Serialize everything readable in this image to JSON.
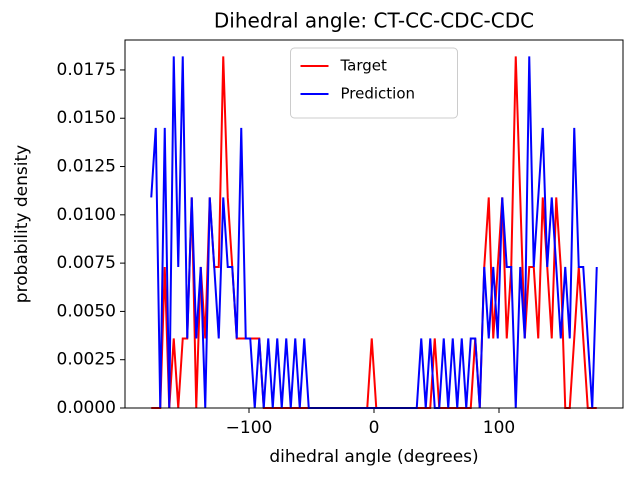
{
  "chart_data": {
    "type": "line",
    "title": "Dihedral angle: CT-CC-CDC-CDC",
    "xlabel": "dihedral angle (degrees)",
    "ylabel": "probability density",
    "x": [
      -178.2,
      -174.6,
      -171,
      -167.4,
      -163.8,
      -160.2,
      -156.6,
      -153,
      -149.4,
      -145.8,
      -142.2,
      -138.6,
      -135,
      -131.4,
      -127.8,
      -124.2,
      -120.6,
      -117,
      -113.4,
      -109.8,
      -106.2,
      -102.6,
      -99,
      -95.4,
      -91.8,
      -88.2,
      -84.6,
      -81,
      -77.4,
      -73.8,
      -70.2,
      -66.6,
      -63,
      -59.4,
      -55.8,
      -52.2,
      -48.6,
      -45,
      -41.4,
      -37.8,
      -34.2,
      -30.6,
      -27,
      -23.4,
      -19.8,
      -16.2,
      -12.6,
      -9,
      -5.4,
      -1.8,
      1.8,
      5.4,
      9,
      12.6,
      16.2,
      19.8,
      23.4,
      27,
      30.6,
      34.2,
      37.8,
      41.4,
      45,
      48.6,
      52.2,
      55.8,
      59.4,
      63,
      66.6,
      70.2,
      73.8,
      77.4,
      81,
      84.6,
      88.2,
      91.8,
      95.4,
      99,
      102.6,
      106.2,
      109.8,
      113.4,
      117,
      120.6,
      124.2,
      127.8,
      131.4,
      135,
      138.6,
      142.2,
      145.8,
      149.4,
      153,
      156.6,
      160.2,
      163.8,
      167.4,
      171,
      174.6,
      178.2
    ],
    "series": [
      {
        "name": "Target",
        "color": "#ff0000",
        "values": [
          0,
          0,
          0,
          0.0073,
          0,
          0.0036,
          0,
          0.0036,
          0.0036,
          0.0109,
          0,
          0.0073,
          0.0036,
          0.0109,
          0.0073,
          0.0073,
          0.0182,
          0.0109,
          0.0073,
          0.0036,
          0.0036,
          0.0036,
          0.0036,
          0.0036,
          0.0036,
          0,
          0,
          0,
          0,
          0,
          0,
          0,
          0,
          0,
          0,
          0,
          0,
          0,
          0,
          0,
          0,
          0,
          0,
          0,
          0,
          0,
          0,
          0,
          0,
          0.0036,
          0,
          0,
          0,
          0,
          0,
          0,
          0,
          0,
          0,
          0,
          0,
          0,
          0,
          0.0036,
          0,
          0,
          0,
          0,
          0,
          0,
          0,
          0,
          0.0036,
          0,
          0.0073,
          0.0109,
          0.0036,
          0.0073,
          0.0109,
          0.0036,
          0.0073,
          0.0182,
          0.0109,
          0.0036,
          0.0073,
          0.0073,
          0.0036,
          0.0109,
          0.0073,
          0.0036,
          0.0109,
          0.0073,
          0,
          0,
          0.0036,
          0.0073,
          0.0036,
          0,
          0,
          0
        ]
      },
      {
        "name": "Prediction",
        "color": "#0000ff",
        "values": [
          0.0109,
          0.0145,
          0,
          0.0145,
          0,
          0.0182,
          0.0073,
          0.0182,
          0.0036,
          0.0109,
          0.0036,
          0.0073,
          0,
          0.0109,
          0.0073,
          0.0036,
          0.0109,
          0.0073,
          0.0073,
          0.0036,
          0.0145,
          0.0036,
          0.0036,
          0,
          0.0036,
          0,
          0.0036,
          0,
          0.0036,
          0,
          0.0036,
          0,
          0.0036,
          0,
          0.0036,
          0,
          0,
          0,
          0,
          0,
          0,
          0,
          0,
          0,
          0,
          0,
          0,
          0,
          0,
          0,
          0,
          0,
          0,
          0,
          0,
          0,
          0,
          0,
          0,
          0,
          0.0036,
          0,
          0.0036,
          0,
          0,
          0.0036,
          0,
          0.0036,
          0,
          0.0036,
          0,
          0.0036,
          0.0036,
          0,
          0.0073,
          0.0036,
          0.0073,
          0.0036,
          0.0109,
          0.0073,
          0.0073,
          0,
          0.0073,
          0.0036,
          0.0182,
          0.0073,
          0.0109,
          0.0145,
          0.0073,
          0.0109,
          0.0073,
          0.0036,
          0.0073,
          0.0036,
          0.0145,
          0.0073,
          0.0073,
          0.0036,
          0,
          0.0073
        ]
      }
    ],
    "xlim": [
      -199.2,
      199.2
    ],
    "ylim": [
      0,
      0.01905
    ],
    "xticks": [
      {
        "value": -100,
        "label": "−100"
      },
      0,
      100
    ],
    "yticks": [
      {
        "value": 0,
        "label": "0.0000"
      },
      {
        "value": 0.0025,
        "label": "0.0025"
      },
      {
        "value": 0.005,
        "label": "0.0050"
      },
      {
        "value": 0.0075,
        "label": "0.0075"
      },
      {
        "value": 0.01,
        "label": "0.0100"
      },
      {
        "value": 0.0125,
        "label": "0.0125"
      },
      {
        "value": 0.015,
        "label": "0.0150"
      },
      {
        "value": 0.0175,
        "label": "0.0175"
      }
    ],
    "legend": "upper center"
  }
}
